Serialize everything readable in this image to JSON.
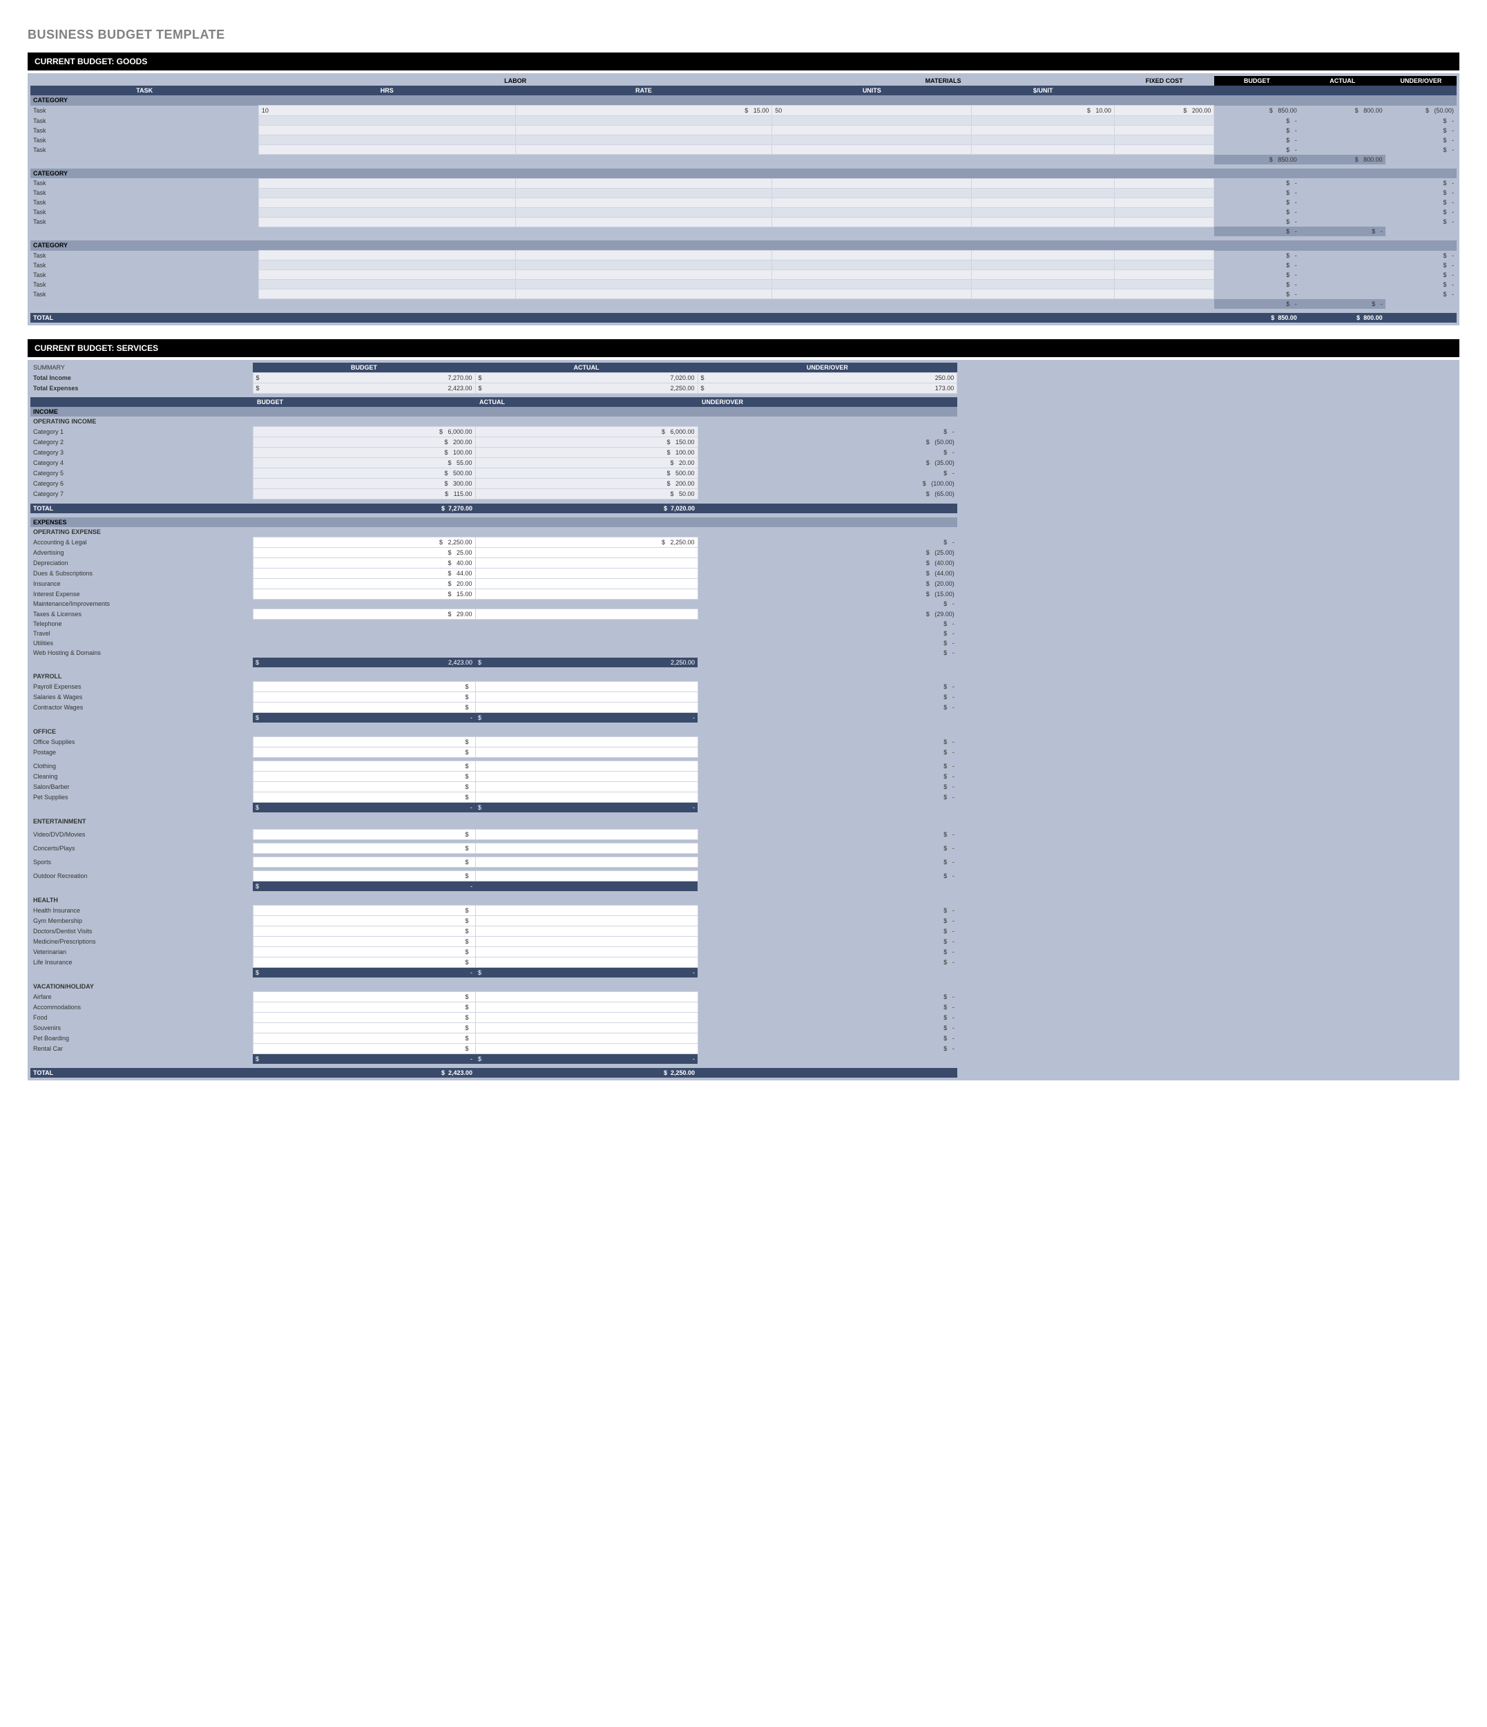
{
  "page_title": "BUSINESS BUDGET TEMPLATE",
  "colors": {
    "page_bg": "#ffffff",
    "title_text": "#808080",
    "section_title_bg": "#000000",
    "section_title_text": "#ffffff",
    "panel_bg": "#b7c0d2",
    "header_dark_bg": "#3a4a6b",
    "header_dark_text": "#ffffff",
    "category_bg": "#8f9bb3",
    "cell_bg": "#ebedf2",
    "cell_alt_bg": "#dde1ea",
    "cell_border": "#cfd4df"
  },
  "goods": {
    "section_title": "CURRENT BUDGET: GOODS",
    "group_headers": {
      "blank": "",
      "labor": "LABOR",
      "materials": "MATERIALS",
      "fixed_cost": "FIXED COST",
      "budget": "BUDGET",
      "actual": "ACTUAL",
      "under_over": "UNDER/OVER"
    },
    "sub_headers": {
      "task": "TASK",
      "hrs": "HRS",
      "rate": "RATE",
      "units": "UNITS",
      "per_unit": "$/UNIT"
    },
    "categories": [
      {
        "label": "CATEGORY",
        "tasks": [
          {
            "label": "Task",
            "hrs": "10",
            "rate": "15.00",
            "units": "50",
            "per_unit": "10.00",
            "fixed": "200.00",
            "budget": "850.00",
            "actual": "800.00",
            "uo": "(50.00)"
          },
          {
            "label": "Task",
            "hrs": "",
            "rate": "",
            "units": "",
            "per_unit": "",
            "fixed": "",
            "budget": "-",
            "actual": "",
            "uo": "-"
          },
          {
            "label": "Task",
            "hrs": "",
            "rate": "",
            "units": "",
            "per_unit": "",
            "fixed": "",
            "budget": "-",
            "actual": "",
            "uo": "-"
          },
          {
            "label": "Task",
            "hrs": "",
            "rate": "",
            "units": "",
            "per_unit": "",
            "fixed": "",
            "budget": "-",
            "actual": "",
            "uo": "-"
          },
          {
            "label": "Task",
            "hrs": "",
            "rate": "",
            "units": "",
            "per_unit": "",
            "fixed": "",
            "budget": "-",
            "actual": "",
            "uo": "-"
          }
        ],
        "subtotal": {
          "budget": "850.00",
          "actual": "800.00"
        }
      },
      {
        "label": "CATEGORY",
        "tasks": [
          {
            "label": "Task",
            "hrs": "",
            "rate": "",
            "units": "",
            "per_unit": "",
            "fixed": "",
            "budget": "-",
            "actual": "",
            "uo": "-"
          },
          {
            "label": "Task",
            "hrs": "",
            "rate": "",
            "units": "",
            "per_unit": "",
            "fixed": "",
            "budget": "-",
            "actual": "",
            "uo": "-"
          },
          {
            "label": "Task",
            "hrs": "",
            "rate": "",
            "units": "",
            "per_unit": "",
            "fixed": "",
            "budget": "-",
            "actual": "",
            "uo": "-"
          },
          {
            "label": "Task",
            "hrs": "",
            "rate": "",
            "units": "",
            "per_unit": "",
            "fixed": "",
            "budget": "-",
            "actual": "",
            "uo": "-"
          },
          {
            "label": "Task",
            "hrs": "",
            "rate": "",
            "units": "",
            "per_unit": "",
            "fixed": "",
            "budget": "-",
            "actual": "",
            "uo": "-"
          }
        ],
        "subtotal": {
          "budget": "-",
          "actual": "-"
        }
      },
      {
        "label": "CATEGORY",
        "tasks": [
          {
            "label": "Task",
            "hrs": "",
            "rate": "",
            "units": "",
            "per_unit": "",
            "fixed": "",
            "budget": "-",
            "actual": "",
            "uo": "-"
          },
          {
            "label": "Task",
            "hrs": "",
            "rate": "",
            "units": "",
            "per_unit": "",
            "fixed": "",
            "budget": "-",
            "actual": "",
            "uo": "-"
          },
          {
            "label": "Task",
            "hrs": "",
            "rate": "",
            "units": "",
            "per_unit": "",
            "fixed": "",
            "budget": "-",
            "actual": "",
            "uo": "-"
          },
          {
            "label": "Task",
            "hrs": "",
            "rate": "",
            "units": "",
            "per_unit": "",
            "fixed": "",
            "budget": "-",
            "actual": "",
            "uo": "-"
          },
          {
            "label": "Task",
            "hrs": "",
            "rate": "",
            "units": "",
            "per_unit": "",
            "fixed": "",
            "budget": "-",
            "actual": "",
            "uo": "-"
          }
        ],
        "subtotal": {
          "budget": "-",
          "actual": "-"
        }
      }
    ],
    "total": {
      "label": "TOTAL",
      "budget": "850.00",
      "actual": "800.00"
    }
  },
  "services": {
    "section_title": "CURRENT BUDGET: SERVICES",
    "summary_label": "SUMMARY",
    "summary_headers": {
      "budget": "BUDGET",
      "actual": "ACTUAL",
      "uo": "UNDER/OVER"
    },
    "summary_rows": [
      {
        "label": "Total Income",
        "budget": "7,270.00",
        "actual": "7,020.00",
        "uo": "250.00"
      },
      {
        "label": "Total Expenses",
        "budget": "2,423.00",
        "actual": "2,250.00",
        "uo": "173.00"
      }
    ],
    "income": {
      "header": "INCOME",
      "sub": "OPERATING INCOME",
      "headers": {
        "budget": "BUDGET",
        "actual": "ACTUAL",
        "uo": "UNDER/OVER"
      },
      "rows": [
        {
          "label": "Category 1",
          "budget": "6,000.00",
          "actual": "6,000.00",
          "uo": "-"
        },
        {
          "label": "Category 2",
          "budget": "200.00",
          "actual": "150.00",
          "uo": "(50.00)"
        },
        {
          "label": "Category 3",
          "budget": "100.00",
          "actual": "100.00",
          "uo": "-"
        },
        {
          "label": "Category 4",
          "budget": "55.00",
          "actual": "20.00",
          "uo": "(35.00)"
        },
        {
          "label": "Category 5",
          "budget": "500.00",
          "actual": "500.00",
          "uo": "-"
        },
        {
          "label": "Category 6",
          "budget": "300.00",
          "actual": "200.00",
          "uo": "(100.00)"
        },
        {
          "label": "Category 7",
          "budget": "115.00",
          "actual": "50.00",
          "uo": "(65.00)"
        }
      ],
      "total": {
        "label": "TOTAL",
        "budget": "7,270.00",
        "actual": "7,020.00"
      }
    },
    "expenses": {
      "header": "EXPENSES",
      "groups": [
        {
          "label": "OPERATING EXPENSE",
          "rows": [
            {
              "label": "Accounting & Legal",
              "budget": "2,250.00",
              "actual": "2,250.00",
              "uo": "-"
            },
            {
              "label": "Advertising",
              "budget": "25.00",
              "actual": "",
              "uo": "(25.00)"
            },
            {
              "label": "Depreciation",
              "budget": "40.00",
              "actual": "",
              "uo": "(40.00)"
            },
            {
              "label": "Dues & Subscriptions",
              "budget": "44.00",
              "actual": "",
              "uo": "(44.00)"
            },
            {
              "label": "Insurance",
              "budget": "20.00",
              "actual": "",
              "uo": "(20.00)"
            },
            {
              "label": "Interest Expense",
              "budget": "15.00",
              "actual": "",
              "uo": "(15.00)"
            },
            {
              "label": "Maintenance/Improvements",
              "budget": "",
              "actual": "",
              "uo": "-",
              "nobox": true
            },
            {
              "label": "Taxes & Licenses",
              "budget": "29.00",
              "actual": "",
              "uo": "(29.00)"
            },
            {
              "label": "Telephone",
              "budget": "",
              "actual": "",
              "uo": "-",
              "nobox": true
            },
            {
              "label": "Travel",
              "budget": "",
              "actual": "",
              "uo": "-",
              "nobox": true
            },
            {
              "label": "Utilities",
              "budget": "",
              "actual": "",
              "uo": "-",
              "nobox": true
            },
            {
              "label": "Web Hosting & Domains",
              "budget": "",
              "actual": "",
              "uo": "-",
              "nobox": true
            }
          ],
          "subtotal": {
            "budget": "2,423.00",
            "actual": "2,250.00"
          }
        },
        {
          "label": "PAYROLL",
          "rows": [
            {
              "label": "Payroll Expenses",
              "budget": "",
              "actual": "",
              "uo": "-"
            },
            {
              "label": "Salaries & Wages",
              "budget": "",
              "actual": "",
              "uo": "-"
            },
            {
              "label": "Contractor Wages",
              "budget": "",
              "actual": "",
              "uo": "-"
            }
          ],
          "subtotal": {
            "budget": "-",
            "actual": "-"
          }
        },
        {
          "label": "OFFICE",
          "rows": [
            {
              "label": "Office Supplies",
              "budget": "",
              "actual": "",
              "uo": "-"
            },
            {
              "label": "Postage",
              "budget": "",
              "actual": "",
              "uo": "-"
            },
            {
              "label": "",
              "budget": "",
              "actual": "",
              "uo": "",
              "nobox": true
            },
            {
              "label": "Clothing",
              "budget": "",
              "actual": "",
              "uo": "-"
            },
            {
              "label": "Cleaning",
              "budget": "",
              "actual": "",
              "uo": "-"
            },
            {
              "label": "Salon/Barber",
              "budget": "",
              "actual": "",
              "uo": "-"
            },
            {
              "label": "Pet Supplies",
              "budget": "",
              "actual": "",
              "uo": "-"
            }
          ],
          "subtotal": {
            "budget": "-",
            "actual": "-"
          }
        },
        {
          "label": "ENTERTAINMENT",
          "rows": [
            {
              "label": "",
              "budget": "",
              "actual": "",
              "uo": "",
              "nobox": true
            },
            {
              "label": "Video/DVD/Movies",
              "budget": "",
              "actual": "",
              "uo": "-"
            },
            {
              "label": "",
              "budget": "",
              "actual": "",
              "uo": "",
              "nobox": true
            },
            {
              "label": "Concerts/Plays",
              "budget": "",
              "actual": "",
              "uo": "-"
            },
            {
              "label": "",
              "budget": "",
              "actual": "",
              "uo": "",
              "nobox": true
            },
            {
              "label": "Sports",
              "budget": "",
              "actual": "",
              "uo": "-"
            },
            {
              "label": "",
              "budget": "",
              "actual": "",
              "uo": "",
              "nobox": true
            },
            {
              "label": "Outdoor Recreation",
              "budget": "",
              "actual": "",
              "uo": "-"
            }
          ],
          "subtotal": {
            "budget": "-",
            "actual": ""
          }
        },
        {
          "label": "HEALTH",
          "rows": [
            {
              "label": "Health Insurance",
              "budget": "",
              "actual": "",
              "uo": "-"
            },
            {
              "label": "Gym Membership",
              "budget": "",
              "actual": "",
              "uo": "-"
            },
            {
              "label": "Doctors/Dentist Visits",
              "budget": "",
              "actual": "",
              "uo": "-"
            },
            {
              "label": "Medicine/Prescriptions",
              "budget": "",
              "actual": "",
              "uo": "-"
            },
            {
              "label": "Veterinarian",
              "budget": "",
              "actual": "",
              "uo": "-"
            },
            {
              "label": "Life Insurance",
              "budget": "",
              "actual": "",
              "uo": "-"
            }
          ],
          "subtotal": {
            "budget": "-",
            "actual": "-"
          }
        },
        {
          "label": "VACATION/HOLIDAY",
          "rows": [
            {
              "label": "Airfare",
              "budget": "",
              "actual": "",
              "uo": "-"
            },
            {
              "label": "Accommodations",
              "budget": "",
              "actual": "",
              "uo": "-"
            },
            {
              "label": "Food",
              "budget": "",
              "actual": "",
              "uo": "-"
            },
            {
              "label": "Souvenirs",
              "budget": "",
              "actual": "",
              "uo": "-"
            },
            {
              "label": "Pet Boarding",
              "budget": "",
              "actual": "",
              "uo": "-"
            },
            {
              "label": "Rental Car",
              "budget": "",
              "actual": "",
              "uo": "-"
            }
          ],
          "subtotal": {
            "budget": "-",
            "actual": "-"
          }
        }
      ],
      "total": {
        "label": "TOTAL",
        "budget": "2,423.00",
        "actual": "2,250.00"
      }
    }
  }
}
